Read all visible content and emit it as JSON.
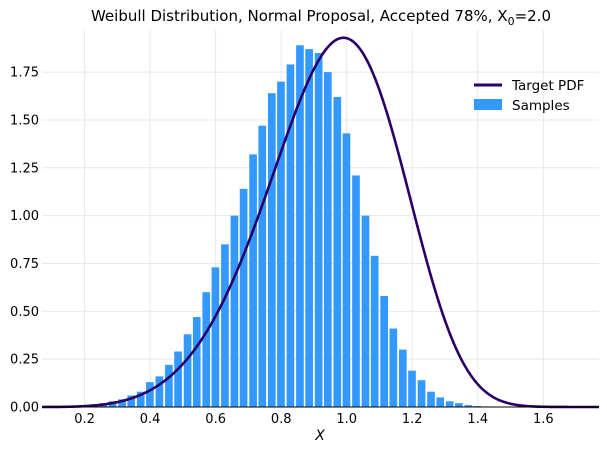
{
  "chart_data": {
    "type": "bar",
    "title": {
      "prefix": "Weibull Distribution, Normal Proposal, Accepted 78%, X",
      "subscript": "0",
      "suffix": "=2.0"
    },
    "xlabel": "X",
    "ylabel": "",
    "xlim": [
      0.07,
      1.77
    ],
    "ylim": [
      0.0,
      1.97
    ],
    "xticks": [
      0.2,
      0.4,
      0.6,
      0.8,
      1.0,
      1.2,
      1.4,
      1.6
    ],
    "xtick_labels": [
      "0.2",
      "0.4",
      "0.6",
      "0.8",
      "1.0",
      "1.2",
      "1.4",
      "1.6"
    ],
    "yticks": [
      0.0,
      0.25,
      0.5,
      0.75,
      1.0,
      1.25,
      1.5,
      1.75
    ],
    "ytick_labels": [
      "0.00",
      "0.25",
      "0.50",
      "0.75",
      "1.00",
      "1.25",
      "1.50",
      "1.75"
    ],
    "grid": true,
    "legend": {
      "position": "top-right",
      "entries": [
        "Target PDF",
        "Samples"
      ]
    },
    "series": [
      {
        "name": "Samples",
        "kind": "histogram",
        "color": "#3399ff",
        "bin_width": 0.0286,
        "bin_starts": [
          0.1,
          0.128,
          0.157,
          0.185,
          0.214,
          0.243,
          0.271,
          0.3,
          0.328,
          0.357,
          0.385,
          0.414,
          0.443,
          0.471,
          0.5,
          0.528,
          0.557,
          0.585,
          0.614,
          0.643,
          0.671,
          0.7,
          0.728,
          0.757,
          0.785,
          0.814,
          0.843,
          0.871,
          0.9,
          0.928,
          0.957,
          0.985,
          1.014,
          1.043,
          1.071,
          1.1,
          1.128,
          1.157,
          1.185,
          1.214,
          1.243,
          1.271,
          1.3,
          1.328,
          1.357,
          1.385,
          1.414,
          1.443,
          1.471,
          1.5
        ],
        "values": [
          0.002,
          0.004,
          0.008,
          0.01,
          0.015,
          0.02,
          0.03,
          0.04,
          0.06,
          0.08,
          0.13,
          0.16,
          0.22,
          0.29,
          0.38,
          0.47,
          0.6,
          0.73,
          0.85,
          1.0,
          1.14,
          1.32,
          1.47,
          1.64,
          1.7,
          1.79,
          1.89,
          1.87,
          1.85,
          1.75,
          1.62,
          1.43,
          1.21,
          1.0,
          0.79,
          0.58,
          0.41,
          0.3,
          0.19,
          0.14,
          0.08,
          0.05,
          0.03,
          0.02,
          0.01,
          0.005,
          0.003,
          0.002,
          0.001,
          0.001
        ]
      },
      {
        "name": "Target PDF",
        "kind": "line",
        "color": "#2a0066",
        "function": "weibull_pdf",
        "params": {
          "shape": 5.3,
          "scale": 1.03
        },
        "x_range": [
          0.07,
          1.77
        ]
      }
    ]
  }
}
